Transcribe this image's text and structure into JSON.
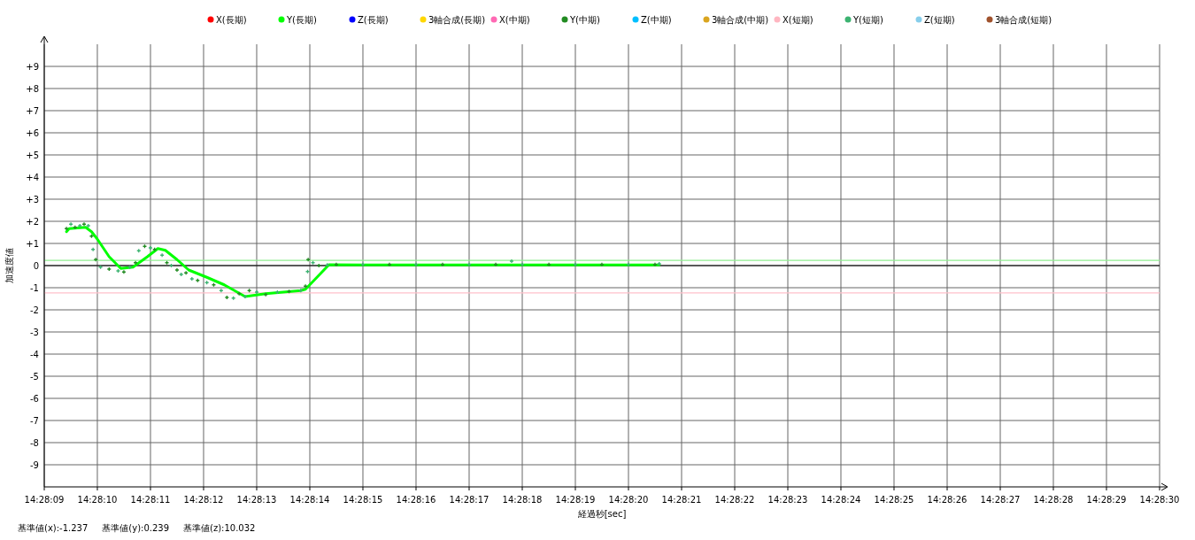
{
  "chart_data": {
    "type": "scatter",
    "xlabel": "経過秒[sec]",
    "ylabel": "加速度値",
    "xlim": [
      14.4691667,
      14.475
    ],
    "ylim": [
      -10,
      10
    ],
    "xticks": [
      {
        "value": 14.4691667,
        "label": "14:28:09"
      },
      {
        "value": 14.4694444,
        "label": "14:28:10"
      },
      {
        "value": 14.4697222,
        "label": "14:28:11"
      },
      {
        "value": 14.47,
        "label": "14:28:12"
      },
      {
        "value": 14.4702778,
        "label": "14:28:13"
      },
      {
        "value": 14.4705556,
        "label": "14:28:14"
      },
      {
        "value": 14.4708333,
        "label": "14:28:15"
      },
      {
        "value": 14.4711111,
        "label": "14:28:16"
      },
      {
        "value": 14.4713889,
        "label": "14:28:17"
      },
      {
        "value": 14.4716667,
        "label": "14:28:18"
      },
      {
        "value": 14.4719444,
        "label": "14:28:19"
      },
      {
        "value": 14.4722222,
        "label": "14:28:20"
      },
      {
        "value": 14.4725,
        "label": "14:28:21"
      },
      {
        "value": 14.4727778,
        "label": "14:28:22"
      },
      {
        "value": 14.4730556,
        "label": "14:28:23"
      },
      {
        "value": 14.4733333,
        "label": "14:28:24"
      },
      {
        "value": 14.4736111,
        "label": "14:28:25"
      },
      {
        "value": 14.4738889,
        "label": "14:28:26"
      },
      {
        "value": 14.4741667,
        "label": "14:28:27"
      },
      {
        "value": 14.4744444,
        "label": "14:28:28"
      },
      {
        "value": 14.4747222,
        "label": "14:28:29"
      },
      {
        "value": 14.475,
        "label": "14:28:30"
      }
    ],
    "yticks": [
      {
        "value": -9,
        "label": "-9"
      },
      {
        "value": -8,
        "label": "-8"
      },
      {
        "value": -7,
        "label": "-7"
      },
      {
        "value": -6,
        "label": "-6"
      },
      {
        "value": -5,
        "label": "-5"
      },
      {
        "value": -4,
        "label": "-4"
      },
      {
        "value": -3,
        "label": "-3"
      },
      {
        "value": -2,
        "label": "-2"
      },
      {
        "value": -1,
        "label": "-1"
      },
      0,
      {
        "value": 1,
        "label": "+1"
      },
      {
        "value": 2,
        "label": "+2"
      },
      {
        "value": 3,
        "label": "+3"
      },
      {
        "value": 4,
        "label": "+4"
      },
      {
        "value": 5,
        "label": "+5"
      },
      {
        "value": 6,
        "label": "+6"
      },
      {
        "value": 7,
        "label": "+7"
      },
      {
        "value": 8,
        "label": "+8"
      },
      {
        "value": 9,
        "label": "+9"
      }
    ],
    "grid": true,
    "legend": "top",
    "ref_lines": [
      {
        "axis": "y",
        "value": 0,
        "color": "#000000"
      },
      {
        "axis": "y",
        "value": 0.239,
        "color": "#90ee90"
      },
      {
        "axis": "y",
        "value": -1.237,
        "color": "#ffc0cb"
      }
    ],
    "series": [
      {
        "name": "X(長期)",
        "color": "#ff0000"
      },
      {
        "name": "Y(長期)",
        "type": "line",
        "color": "#00ff00",
        "x": [
          14.469283,
          14.469297,
          14.469383,
          14.469414,
          14.469444,
          14.469506,
          14.469567,
          14.469631,
          14.469706,
          14.469761,
          14.4698,
          14.469861,
          14.469922,
          14.470017,
          14.470108,
          14.470217,
          14.470325,
          14.470508,
          14.470533,
          14.470656,
          14.470833,
          14.471111,
          14.471389,
          14.471667,
          14.471944,
          14.472222,
          14.472383
        ],
        "values": [
          1.53,
          1.67,
          1.73,
          1.53,
          1.2,
          0.4,
          -0.13,
          -0.07,
          0.4,
          0.77,
          0.69,
          0.27,
          -0.2,
          -0.53,
          -0.87,
          -1.4,
          -1.27,
          -1.13,
          -1.07,
          0.04,
          0.03,
          0.03,
          0.03,
          0.03,
          0.03,
          0.03,
          0.03
        ]
      },
      {
        "name": "Z(長期)",
        "color": "#0000ff"
      },
      {
        "name": "3軸合成(長期)",
        "color": "#ffd700"
      },
      {
        "name": "X(中期)",
        "color": "#ff69b4"
      },
      {
        "name": "Y(中期)",
        "color": "#228b22",
        "marker": "cross",
        "x": [
          14.469283,
          14.469328,
          14.469375,
          14.469414,
          14.469436,
          14.469506,
          14.469583,
          14.469644,
          14.469692,
          14.469744,
          14.469808,
          14.469861,
          14.469908,
          14.469969,
          14.470053,
          14.470122,
          14.470186,
          14.470239,
          14.470325,
          14.470447,
          14.470533,
          14.470547,
          14.470603,
          14.470694,
          14.470972,
          14.47125,
          14.471528,
          14.471806,
          14.472083,
          14.472361
        ],
        "values": [
          1.67,
          1.73,
          1.87,
          1.33,
          0.27,
          -0.16,
          -0.29,
          0.13,
          0.87,
          0.73,
          0.13,
          -0.2,
          -0.33,
          -0.67,
          -0.87,
          -1.44,
          -1.27,
          -1.13,
          -1.31,
          -1.17,
          -0.93,
          0.27,
          0,
          0.05,
          0.05,
          0.05,
          0.05,
          0.05,
          0.05,
          0.05
        ]
      },
      {
        "name": "Z(中期)",
        "color": "#00bfff"
      },
      {
        "name": "3軸合成(中期)",
        "color": "#daa520"
      },
      {
        "name": "X(短期)",
        "color": "#ffb6c1"
      },
      {
        "name": "Y(短期)",
        "color": "#3cb371",
        "marker": "cross",
        "x": [
          14.469306,
          14.469353,
          14.469397,
          14.469422,
          14.469461,
          14.469553,
          14.469614,
          14.469661,
          14.469722,
          14.469783,
          14.469831,
          14.469883,
          14.469939,
          14.470017,
          14.470092,
          14.470156,
          14.470217,
          14.470278,
          14.470386,
          14.470508,
          14.470544,
          14.470572,
          14.470647,
          14.470833,
          14.471111,
          14.471389,
          14.471611,
          14.471667,
          14.471944,
          14.472222,
          14.472383
        ],
        "values": [
          1.87,
          1.8,
          1.8,
          0.73,
          -0.07,
          -0.24,
          -0.07,
          0.67,
          0.8,
          0.47,
          0,
          -0.4,
          -0.6,
          -0.77,
          -1.13,
          -1.47,
          -1.4,
          -1.2,
          -1.2,
          -1.13,
          -0.27,
          0.13,
          0.03,
          0.05,
          0.05,
          0.05,
          0.2,
          0.05,
          0.05,
          0.05,
          0.08
        ]
      },
      {
        "name": "Z(短期)",
        "color": "#87ceeb"
      },
      {
        "name": "3軸合成(短期)",
        "color": "#a0522d"
      }
    ],
    "annotations": [
      "基準値(x):-1.237",
      "基準値(y):0.239",
      "基準値(z):10.032"
    ]
  }
}
